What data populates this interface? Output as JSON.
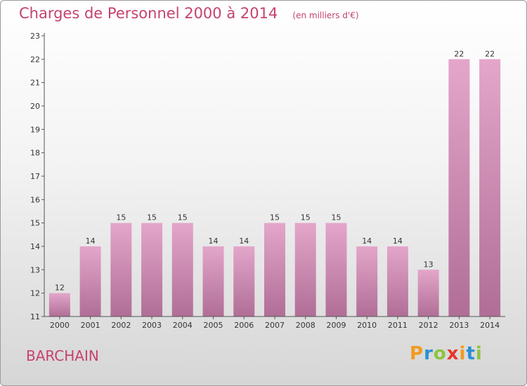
{
  "header": {
    "title": "Charges de Personnel 2000 à 2014",
    "subtitle": "(en milliers d'€)"
  },
  "footer": {
    "commune": "BARCHAIN",
    "logo_text": "Proxiti",
    "logo_colors": [
      "#f29a1f",
      "#2a8fd4",
      "#8bc53f",
      "#e8362a",
      "#f29a1f",
      "#2a8fd4",
      "#8bc53f"
    ]
  },
  "colors": {
    "accent": "#c5426f",
    "bar_top": "#e4a6cb",
    "bar_bottom": "#b06e96"
  },
  "chart_data": {
    "type": "bar",
    "title": "Charges de Personnel 2000 à 2014",
    "subtitle": "(en milliers d'€)",
    "categories": [
      "2000",
      "2001",
      "2002",
      "2003",
      "2004",
      "2005",
      "2006",
      "2007",
      "2008",
      "2009",
      "2010",
      "2011",
      "2012",
      "2013",
      "2014"
    ],
    "values": [
      12,
      14,
      15,
      15,
      15,
      14,
      14,
      15,
      15,
      15,
      14,
      14,
      13,
      22,
      22
    ],
    "data_labels": [
      "12",
      "14",
      "15",
      "15",
      "15",
      "14",
      "14",
      "15",
      "15",
      "15",
      "14",
      "14",
      "13",
      "22",
      "22"
    ],
    "yticks": [
      "11",
      "12",
      "13",
      "14",
      "15",
      "16",
      "17",
      "18",
      "19",
      "20",
      "21",
      "22",
      "23"
    ],
    "ylim": [
      11,
      23
    ],
    "grid": false,
    "xlabel": "",
    "ylabel": ""
  }
}
